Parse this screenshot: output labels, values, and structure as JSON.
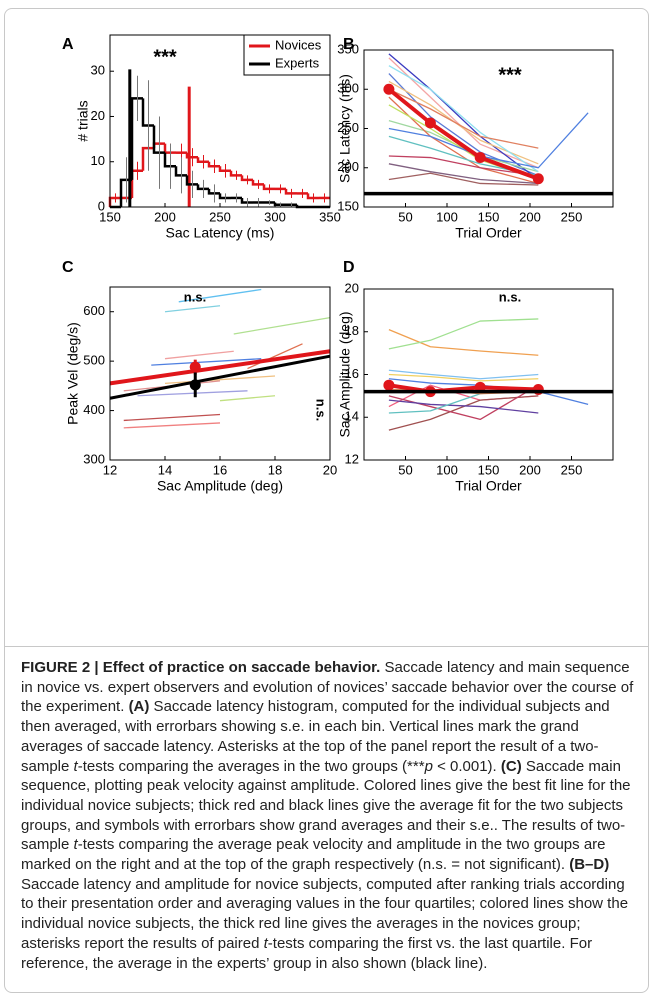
{
  "chart_data": [
    {
      "type": "histogram",
      "panel": "A",
      "xlabel": "Sac Latency (ms)",
      "ylabel": "# trials",
      "annotations": [
        "***"
      ],
      "xlim": [
        150,
        350
      ],
      "xticks": [
        150,
        200,
        250,
        300,
        350
      ],
      "ylim": [
        0,
        38
      ],
      "yticks": [
        0,
        10,
        20,
        30
      ],
      "legend": "upper right",
      "bins": [
        150,
        160,
        170,
        180,
        190,
        200,
        210,
        220,
        230,
        240,
        250,
        260,
        270,
        280,
        290,
        300,
        310,
        320,
        330,
        340,
        350
      ],
      "series": [
        {
          "name": "Novices",
          "color": "#e0161b",
          "mean": 222,
          "values": [
            2,
            2,
            8,
            13,
            14,
            12,
            12,
            11,
            10,
            9,
            8,
            7,
            6,
            5,
            4,
            4,
            3,
            3,
            2,
            2
          ],
          "errors": [
            1,
            1,
            2,
            2,
            2,
            2,
            2,
            2,
            1.5,
            1.5,
            1.5,
            1,
            1,
            1,
            1,
            1,
            1,
            1,
            1,
            1
          ]
        },
        {
          "name": "Experts",
          "color": "#000000",
          "mean": 168,
          "values": [
            0,
            6,
            24,
            18,
            12,
            9,
            7,
            5,
            4,
            3,
            2,
            2,
            1,
            1,
            1,
            0.5,
            0.5,
            0,
            0,
            0
          ],
          "errors": [
            0,
            5,
            5,
            10,
            8,
            5,
            4,
            3,
            2,
            2,
            1,
            1,
            1,
            1,
            0.5,
            0.5,
            0.5,
            0,
            0,
            0
          ]
        }
      ]
    },
    {
      "type": "line",
      "panel": "B",
      "xlabel": "Trial Order",
      "ylabel": "Sac Latency (ms)",
      "annotations": [
        "***"
      ],
      "xlim": [
        0,
        300
      ],
      "xticks": [
        50,
        100,
        150,
        200,
        250
      ],
      "ylim": [
        150,
        350
      ],
      "yticks": [
        150,
        200,
        250,
        300,
        350
      ],
      "reference_line": {
        "value": 167,
        "color": "#000000"
      },
      "series": [
        {
          "color": "#f4a6a6",
          "x": [
            30,
            80,
            140,
            210
          ],
          "values": [
            340,
            290,
            230,
            200
          ]
        },
        {
          "color": "#5b7bd6",
          "x": [
            30,
            80,
            140,
            210
          ],
          "values": [
            320,
            265,
            220,
            190
          ]
        },
        {
          "color": "#3a3ac0",
          "x": [
            30,
            80,
            140,
            210
          ],
          "values": [
            345,
            300,
            240,
            185
          ]
        },
        {
          "color": "#f0c080",
          "x": [
            30,
            80,
            140,
            210
          ],
          "values": [
            310,
            280,
            235,
            205
          ]
        },
        {
          "color": "#a0d8a0",
          "x": [
            30,
            80,
            140,
            210
          ],
          "values": [
            260,
            245,
            215,
            195
          ]
        },
        {
          "color": "#e07050",
          "x": [
            30,
            80,
            140,
            210
          ],
          "values": [
            290,
            240,
            200,
            180
          ]
        },
        {
          "color": "#c04060",
          "x": [
            30,
            80,
            140,
            210
          ],
          "values": [
            215,
            213,
            200,
            190
          ]
        },
        {
          "color": "#806080",
          "x": [
            30,
            80,
            140,
            210
          ],
          "values": [
            205,
            195,
            185,
            180
          ]
        },
        {
          "color": "#90e0f0",
          "x": [
            30,
            80,
            140,
            210
          ],
          "values": [
            330,
            300,
            245,
            195
          ]
        },
        {
          "color": "#c0e060",
          "x": [
            30,
            80,
            140,
            210
          ],
          "values": [
            280,
            250,
            210,
            185
          ]
        },
        {
          "color": "#5080e0",
          "x": [
            30,
            80,
            140,
            210,
            270
          ],
          "values": [
            250,
            240,
            215,
            200,
            270
          ]
        },
        {
          "color": "#e08060",
          "x": [
            30,
            80,
            140,
            210
          ],
          "values": [
            300,
            275,
            240,
            225
          ]
        },
        {
          "color": "#60c0c0",
          "x": [
            30,
            80,
            140,
            210
          ],
          "values": [
            240,
            225,
            205,
            190
          ]
        },
        {
          "color": "#a06060",
          "x": [
            30,
            80,
            140,
            210
          ],
          "values": [
            185,
            193,
            180,
            178
          ]
        },
        {
          "color": "#e0161b",
          "linewidth": 4,
          "marker": "circle",
          "x": [
            30,
            80,
            140,
            210
          ],
          "values": [
            300,
            257,
            213,
            186
          ]
        }
      ]
    },
    {
      "type": "line",
      "panel": "C",
      "xlabel": "Sac Amplitude (deg)",
      "ylabel": "Peak Vel (deg/s)",
      "annotations": [
        "n.s.",
        "n.s."
      ],
      "xlim": [
        12,
        20
      ],
      "xticks": [
        12,
        14,
        16,
        18,
        20
      ],
      "ylim": [
        300,
        650
      ],
      "yticks": [
        300,
        400,
        500,
        600
      ],
      "series": [
        {
          "color": "#60c0f0",
          "x": [
            14.5,
            17.5
          ],
          "values": [
            620,
            645
          ]
        },
        {
          "color": "#80d0e0",
          "x": [
            14,
            16
          ],
          "values": [
            600,
            612
          ]
        },
        {
          "color": "#b0e090",
          "x": [
            16.5,
            20
          ],
          "values": [
            555,
            588
          ]
        },
        {
          "color": "#5080e0",
          "x": [
            13.5,
            17.5
          ],
          "values": [
            492,
            505
          ]
        },
        {
          "color": "#e07050",
          "x": [
            17,
            19
          ],
          "values": [
            485,
            535
          ]
        },
        {
          "color": "#f0c080",
          "x": [
            14,
            18
          ],
          "values": [
            455,
            470
          ]
        },
        {
          "color": "#e09090",
          "x": [
            12.5,
            16
          ],
          "values": [
            440,
            460
          ]
        },
        {
          "color": "#a0a0e0",
          "x": [
            13,
            17
          ],
          "values": [
            430,
            440
          ]
        },
        {
          "color": "#c05050",
          "x": [
            12.5,
            16
          ],
          "values": [
            380,
            392
          ]
        },
        {
          "color": "#f08080",
          "x": [
            12.5,
            16
          ],
          "values": [
            365,
            375
          ]
        },
        {
          "color": "#c0e080",
          "x": [
            16,
            18
          ],
          "values": [
            420,
            430
          ]
        },
        {
          "color": "#f0a0a0",
          "x": [
            14,
            16.5
          ],
          "values": [
            505,
            520
          ]
        },
        {
          "color": "#e0161b",
          "linewidth": 4,
          "x": [
            12,
            20
          ],
          "values": [
            455,
            520
          ]
        },
        {
          "color": "#000000",
          "linewidth": 3,
          "x": [
            12,
            20
          ],
          "values": [
            425,
            510
          ]
        },
        {
          "color": "#e0161b",
          "marker": "circle",
          "x": [
            15.1
          ],
          "values": [
            488
          ],
          "errors": [
            15
          ]
        },
        {
          "color": "#000000",
          "marker": "circle",
          "x": [
            15.1
          ],
          "values": [
            452
          ],
          "errors": [
            25
          ]
        }
      ]
    },
    {
      "type": "line",
      "panel": "D",
      "xlabel": "Trial Order",
      "ylabel": "Sac Amplitude (deg)",
      "annotations": [
        "n.s."
      ],
      "xlim": [
        0,
        300
      ],
      "xticks": [
        50,
        100,
        150,
        200,
        250
      ],
      "ylim": [
        12,
        20
      ],
      "yticks": [
        12,
        14,
        16,
        18,
        20
      ],
      "reference_line": {
        "value": 15.2,
        "color": "#000000"
      },
      "series": [
        {
          "color": "#f0a050",
          "x": [
            30,
            80,
            140,
            210
          ],
          "values": [
            18.1,
            17.3,
            17.1,
            16.9
          ]
        },
        {
          "color": "#a0e090",
          "x": [
            30,
            80,
            140,
            210
          ],
          "values": [
            17.2,
            17.6,
            18.5,
            18.6
          ]
        },
        {
          "color": "#80c0f0",
          "x": [
            30,
            80,
            140,
            210
          ],
          "values": [
            16.2,
            16.0,
            15.8,
            16.0
          ]
        },
        {
          "color": "#f06080",
          "x": [
            30,
            80,
            140,
            210
          ],
          "values": [
            14.5,
            15.5,
            14.8,
            15.0
          ]
        },
        {
          "color": "#a05050",
          "x": [
            30,
            80,
            140,
            210
          ],
          "values": [
            13.4,
            13.9,
            14.8,
            15.0
          ]
        },
        {
          "color": "#c04060",
          "x": [
            30,
            80,
            140,
            210
          ],
          "values": [
            15.0,
            14.5,
            13.9,
            15.5
          ]
        },
        {
          "color": "#5080e0",
          "x": [
            30,
            80,
            140,
            210,
            270
          ],
          "values": [
            15.8,
            15.6,
            15.5,
            15.2,
            14.6
          ]
        },
        {
          "color": "#6040a0",
          "x": [
            30,
            80,
            140,
            210
          ],
          "values": [
            14.8,
            14.6,
            14.5,
            14.2
          ]
        },
        {
          "color": "#f0d060",
          "x": [
            30,
            80,
            140,
            210
          ],
          "values": [
            16.0,
            15.9,
            15.7,
            15.8
          ]
        },
        {
          "color": "#60c0c0",
          "x": [
            30,
            80,
            140,
            210
          ],
          "values": [
            14.2,
            14.3,
            15.1,
            15.4
          ]
        },
        {
          "color": "#e09060",
          "x": [
            30,
            80,
            140,
            210
          ],
          "values": [
            15.3,
            15.3,
            15.1,
            15.2
          ]
        },
        {
          "color": "#e0161b",
          "linewidth": 4,
          "marker": "circle",
          "x": [
            30,
            80,
            140,
            210
          ],
          "values": [
            15.5,
            15.2,
            15.4,
            15.3
          ]
        }
      ]
    }
  ],
  "caption": [
    "FIGURE 2 | Effect of practice on saccade behavior.",
    " Saccade latency and main sequence in novice vs. expert observers and evolution of novices’ saccade behavior over the course of the experiment. ",
    "(A)",
    " Saccade latency histogram, computed for the individual subjects and then averaged, with errorbars showing s.e. in each bin. Vertical lines mark the grand averages of saccade latency. Asterisks at the top of the panel report the result of a two-sample ",
    "t",
    "-tests comparing the averages in the two groups (***",
    "p",
    " < 0.001). ",
    "(C)",
    " Saccade main sequence, plotting peak velocity against amplitude. Colored lines give the best fit line for the individual novice subjects; thick red and black lines give the average fit for the two subjects groups, and symbols with errorbars show grand averages and their s.e.. The results of two-sample ",
    "t",
    "-tests comparing the average peak velocity and amplitude in the two groups are marked on the right and at the top of the graph respectively (n.s. = not significant). ",
    "(B–D)",
    " Saccade latency and amplitude for novice subjects, computed after ranking trials according to their presentation order and averaging values in the four quartiles; colored lines show the individual novice subjects, the thick red line gives the averages in the novices group; asterisks report the results of paired ",
    "t",
    "-tests comparing the first vs. the last quartile. For reference, the average in the experts’ group in also shown (black line)."
  ]
}
